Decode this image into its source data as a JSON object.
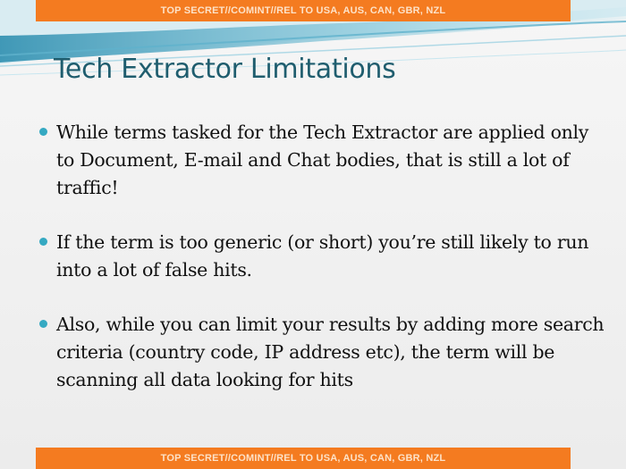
{
  "classification_banner": "TOP SECRET//COMINT//REL TO USA, AUS, CAN, GBR, NZL",
  "slide": {
    "title": "Tech Extractor Limitations",
    "bullets": [
      "While terms tasked for the Tech Extractor are applied only to Document, E-mail and Chat bodies, that is still a lot of traffic!",
      "If the term is too generic (or short) you’re still likely to run into a lot of false hits.",
      "Also, while you can limit your results by adding more search criteria (country code, IP address etc), the term will be scanning all data looking for hits"
    ]
  },
  "colors": {
    "banner": "#f47b20",
    "title": "#1f5d6e",
    "bullet_dot": "#35a9c2",
    "wave": "#4aa6c4"
  }
}
